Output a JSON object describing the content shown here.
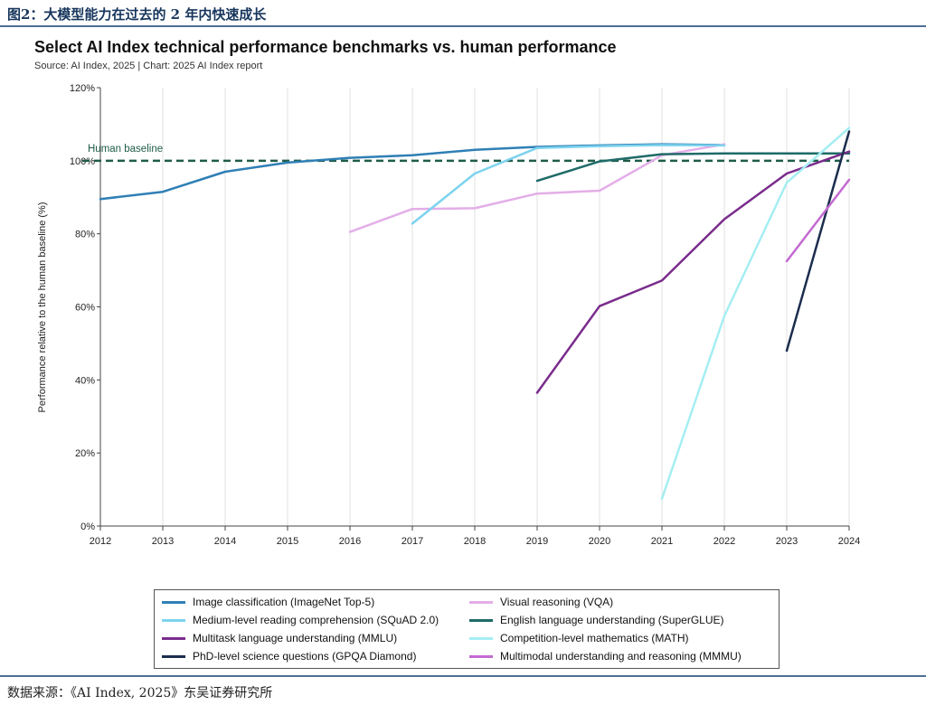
{
  "figure": {
    "caption": "图2：大模型能力在过去的 2 年内快速成长",
    "source": "数据来源：《AI Index, 2025》东吴证券研究所"
  },
  "chart_data": {
    "type": "line",
    "title": "Select AI Index technical performance benchmarks vs. human performance",
    "subtitle": "Source: AI Index, 2025 | Chart: 2025 AI Index report",
    "ylabel": "Performance relative to the human baseline (%)",
    "xlabel": "",
    "xlim": [
      2012,
      2024
    ],
    "ylim": [
      0,
      120
    ],
    "x_ticks": [
      2012,
      2013,
      2014,
      2015,
      2016,
      2017,
      2018,
      2019,
      2020,
      2021,
      2022,
      2023,
      2024
    ],
    "y_ticks": [
      {
        "value": 0,
        "label": "0%"
      },
      {
        "value": 20,
        "label": "20%"
      },
      {
        "value": 40,
        "label": "40%"
      },
      {
        "value": 60,
        "label": "60%"
      },
      {
        "value": 80,
        "label": "80%"
      },
      {
        "value": 100,
        "label": "100%"
      },
      {
        "value": 120,
        "label": "120%"
      }
    ],
    "grid": {
      "x": true,
      "y": false
    },
    "baseline": {
      "label": "Human baseline",
      "value": 100,
      "color": "#1f5c49"
    },
    "legend_position": "bottom",
    "series": [
      {
        "name": "Image classification (ImageNet Top-5)",
        "color": "#2f7fb5",
        "points": [
          [
            2012,
            89.5
          ],
          [
            2013,
            91.5
          ],
          [
            2014,
            97
          ],
          [
            2015,
            99.5
          ],
          [
            2016,
            100.8
          ],
          [
            2017,
            101.5
          ],
          [
            2018,
            103
          ],
          [
            2019,
            103.8
          ],
          [
            2020,
            104.2
          ],
          [
            2021,
            104.5
          ],
          [
            2022,
            104.3
          ]
        ]
      },
      {
        "name": "Visual reasoning (VQA)",
        "color": "#e3aee8",
        "points": [
          [
            2016,
            80.5
          ],
          [
            2017,
            86.8
          ],
          [
            2018,
            87
          ],
          [
            2019,
            91
          ],
          [
            2020,
            91.8
          ],
          [
            2021,
            101.5
          ],
          [
            2022,
            104.5
          ]
        ]
      },
      {
        "name": "Medium-level reading comprehension (SQuAD 2.0)",
        "color": "#7dd3ee",
        "points": [
          [
            2017,
            82.8
          ],
          [
            2018,
            96.5
          ],
          [
            2019,
            103.5
          ],
          [
            2020,
            104
          ],
          [
            2021,
            104.3
          ],
          [
            2022,
            104.2
          ]
        ]
      },
      {
        "name": "English language understanding (SuperGLUE)",
        "color": "#1e6b68",
        "points": [
          [
            2019,
            94.5
          ],
          [
            2020,
            99.8
          ],
          [
            2021,
            101.8
          ],
          [
            2022,
            102
          ],
          [
            2023,
            102
          ],
          [
            2024,
            102
          ]
        ]
      },
      {
        "name": "Multitask language understanding (MMLU)",
        "color": "#7a2c8c",
        "points": [
          [
            2019,
            36.5
          ],
          [
            2020,
            60.2
          ],
          [
            2021,
            67.2
          ],
          [
            2022,
            84
          ],
          [
            2023,
            96.5
          ],
          [
            2024,
            102.5
          ]
        ]
      },
      {
        "name": "Competition-level mathematics (MATH)",
        "color": "#a5eef2",
        "points": [
          [
            2021,
            7.5
          ],
          [
            2022,
            57.5
          ],
          [
            2023,
            94
          ],
          [
            2024,
            109
          ]
        ]
      },
      {
        "name": "PhD-level science questions (GPQA Diamond)",
        "color": "#1b2d4d",
        "points": [
          [
            2023,
            48
          ],
          [
            2024,
            108
          ]
        ]
      },
      {
        "name": "Multimodal understanding and reasoning (MMMU)",
        "color": "#c36ad1",
        "points": [
          [
            2023,
            72.5
          ],
          [
            2024,
            94.8
          ]
        ]
      }
    ]
  }
}
